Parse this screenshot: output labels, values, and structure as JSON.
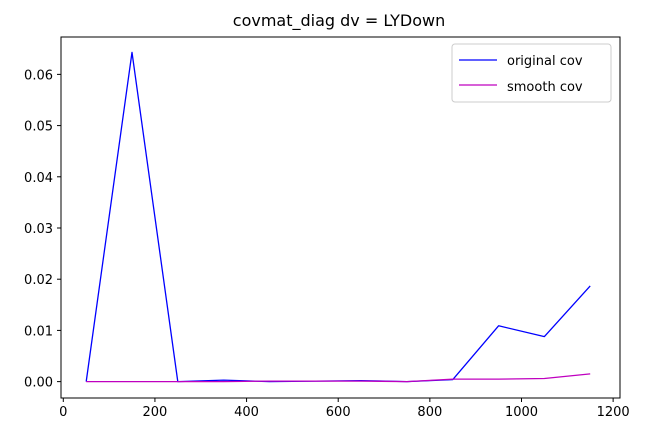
{
  "chart_data": {
    "type": "line",
    "title": "covmat_diag dv = LYDown",
    "xlabel": "",
    "ylabel": "",
    "xlim": [
      -5,
      1215
    ],
    "ylim": [
      -0.0032,
      0.0673
    ],
    "x_ticks": [
      0,
      200,
      400,
      600,
      800,
      1000,
      1200
    ],
    "x_tick_labels": [
      "0",
      "200",
      "400",
      "600",
      "800",
      "1000",
      "1200"
    ],
    "y_ticks": [
      0.0,
      0.01,
      0.02,
      0.03,
      0.04,
      0.05,
      0.06
    ],
    "y_tick_labels": [
      "0.00",
      "0.01",
      "0.02",
      "0.03",
      "0.04",
      "0.05",
      "0.06"
    ],
    "grid": false,
    "legend_position": "top-right",
    "x": [
      50,
      150,
      250,
      350,
      450,
      550,
      650,
      750,
      850,
      950,
      1050,
      1150
    ],
    "series": [
      {
        "name": "original cov",
        "color": "#0000ff",
        "values": [
          0.0,
          0.0643,
          0.0,
          0.0003,
          0.0,
          0.0001,
          0.0002,
          0.0,
          0.0004,
          0.0109,
          0.0088,
          0.0187
        ]
      },
      {
        "name": "smooth cov",
        "color": "#bf00bf",
        "values": [
          0.0,
          0.0,
          0.0,
          0.0,
          0.0001,
          0.0001,
          0.0001,
          0.0,
          0.0005,
          0.0005,
          0.0006,
          0.0015
        ]
      }
    ]
  }
}
